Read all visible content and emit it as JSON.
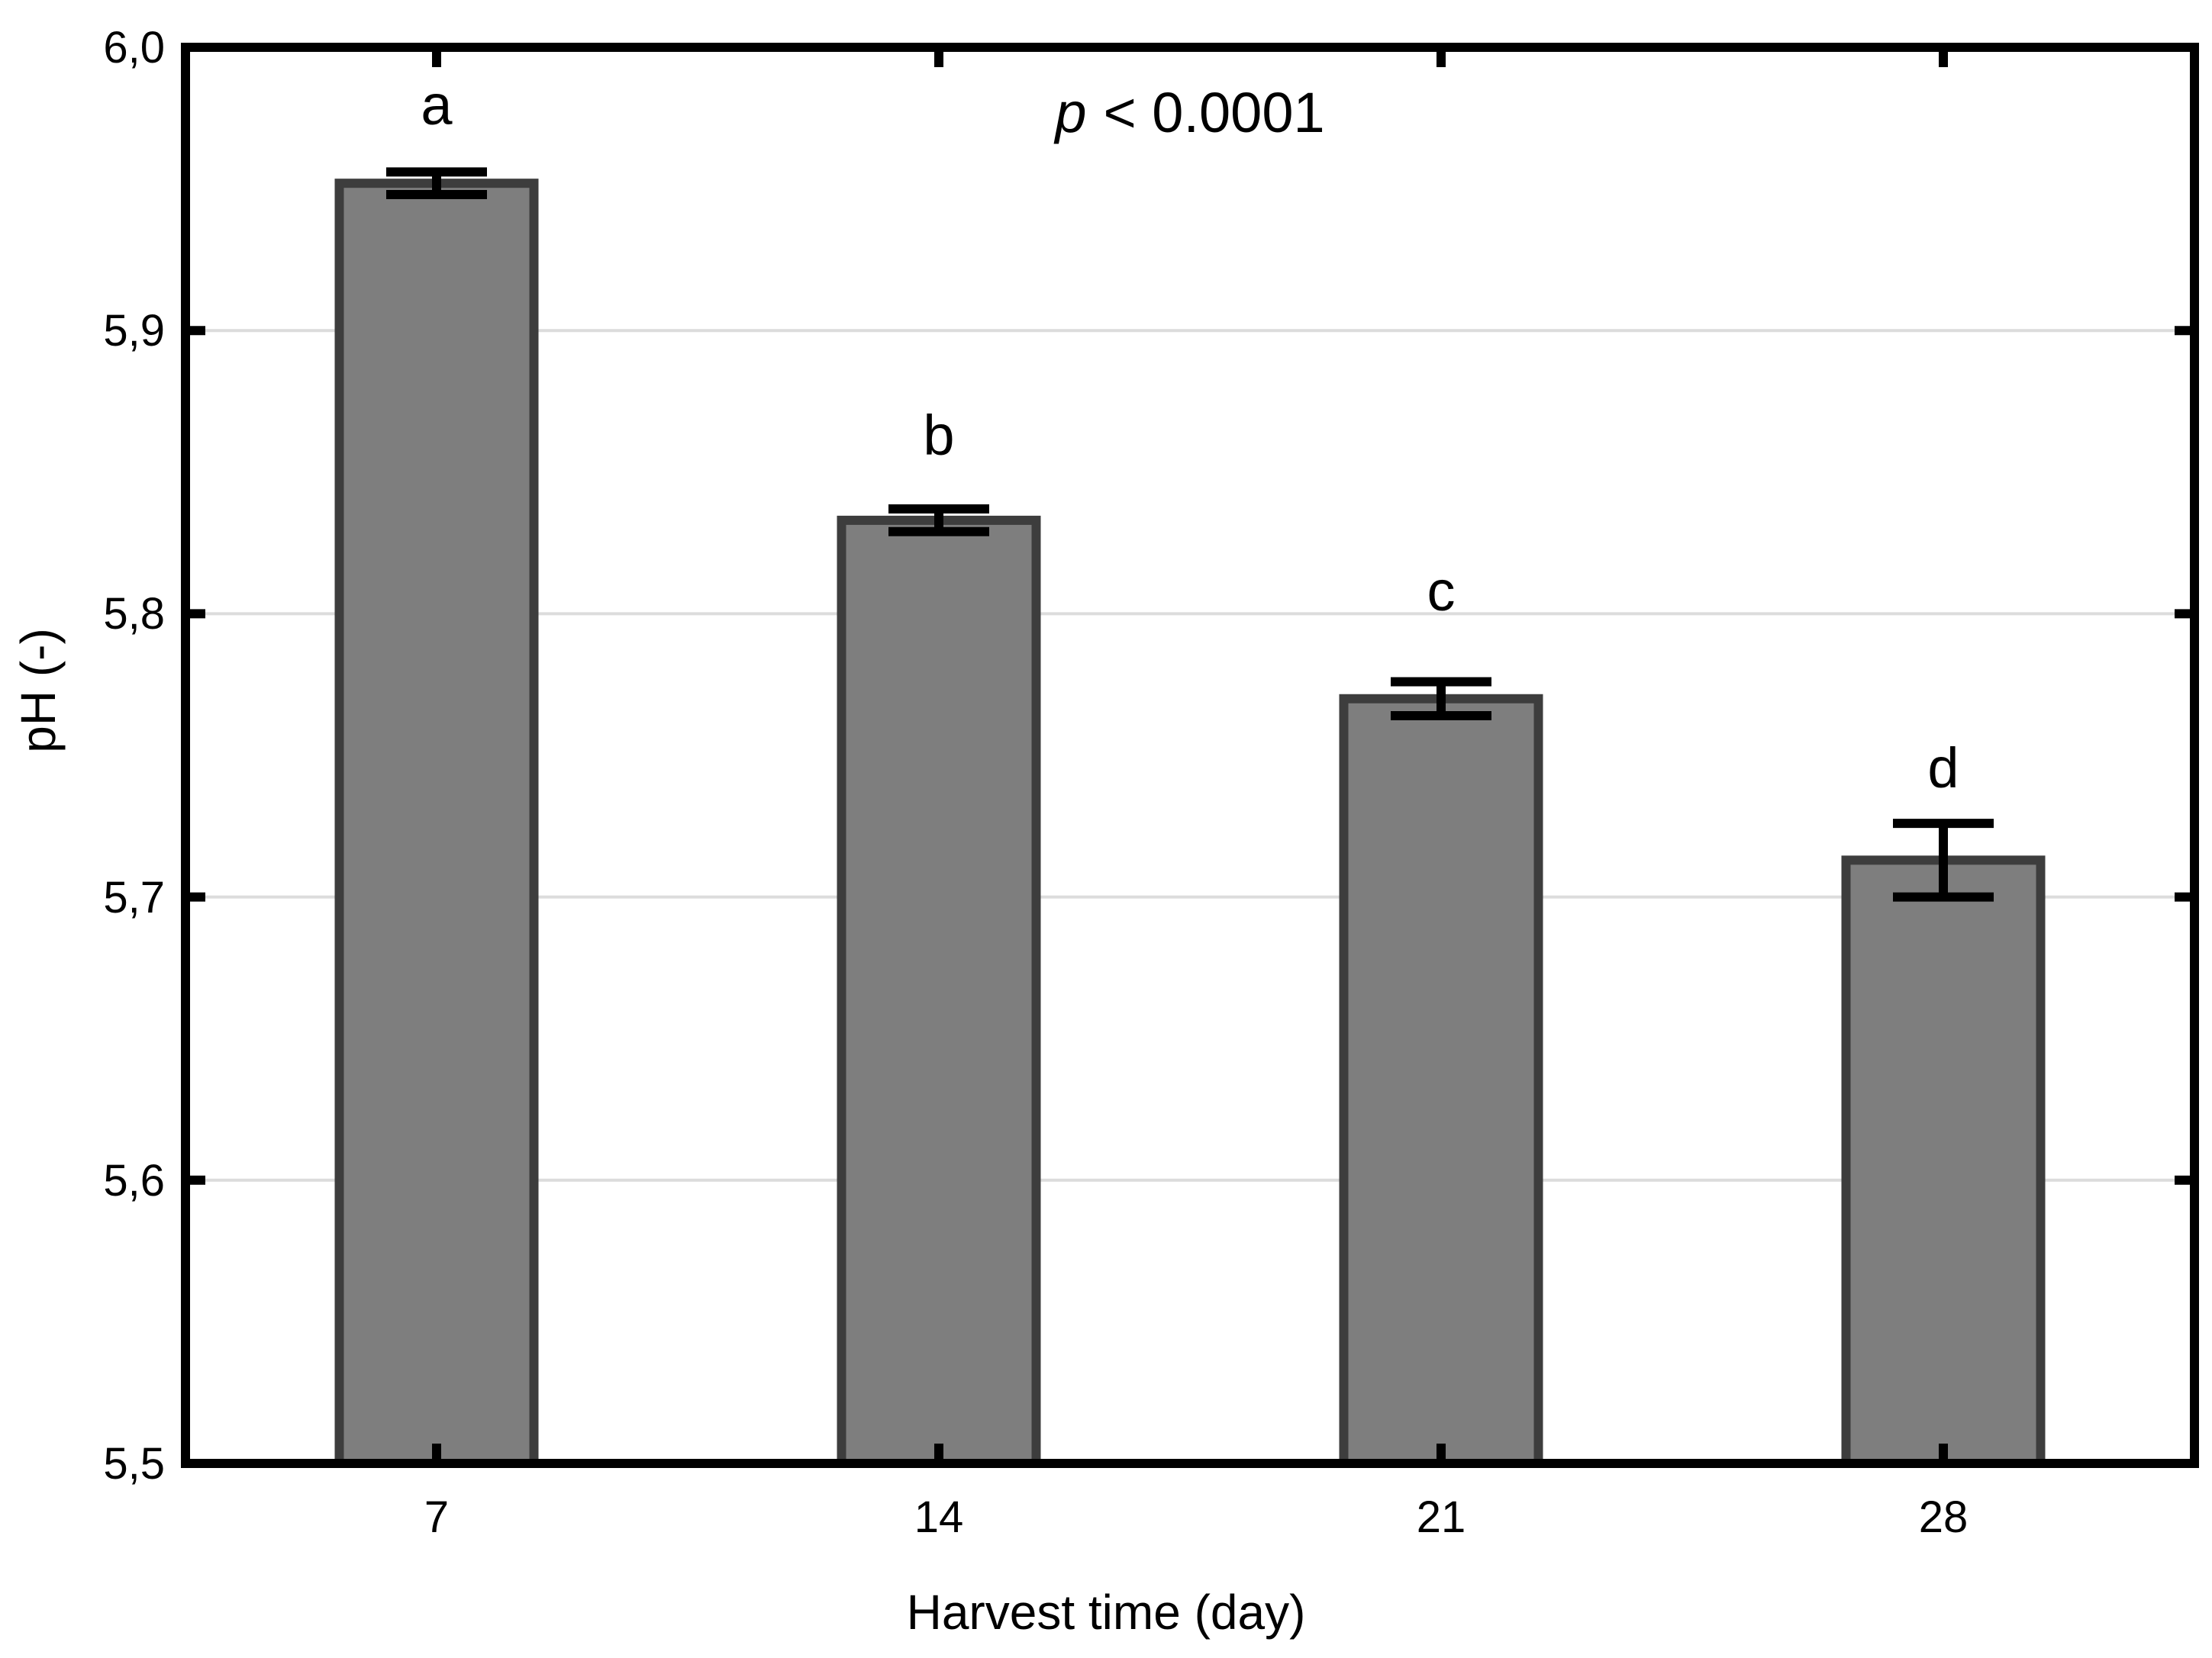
{
  "chart_data": {
    "type": "bar",
    "title": "",
    "xlabel": "Harvest time (day)",
    "ylabel": "pH (-)",
    "annotation": "p < 0.0001",
    "annotation_p": "p",
    "annotation_rest": "< 0.0001",
    "categories": [
      "7",
      "14",
      "21",
      "28"
    ],
    "values": [
      5.952,
      5.833,
      5.77,
      5.713
    ],
    "errors": [
      0.004,
      0.004,
      0.006,
      0.013
    ],
    "sig_letters": [
      "a",
      "b",
      "c",
      "d"
    ],
    "ylim": [
      5.5,
      6.0
    ],
    "ytick_step": 0.1,
    "ytick_labels_top_to_bottom": [
      "6,0",
      "5,9",
      "5,8",
      "5,7",
      "5,6",
      "5,5"
    ],
    "decimal_separator_axis": ",",
    "grid": "horizontal-major",
    "legend": "none",
    "colors": {
      "bar_fill": "#7e7e7e",
      "bar_border": "#3d3d3d",
      "error_bar": "#000000",
      "gridline": "#dcdcdc",
      "axis": "#000000",
      "text": "#000000",
      "background": "#ffffff"
    }
  }
}
